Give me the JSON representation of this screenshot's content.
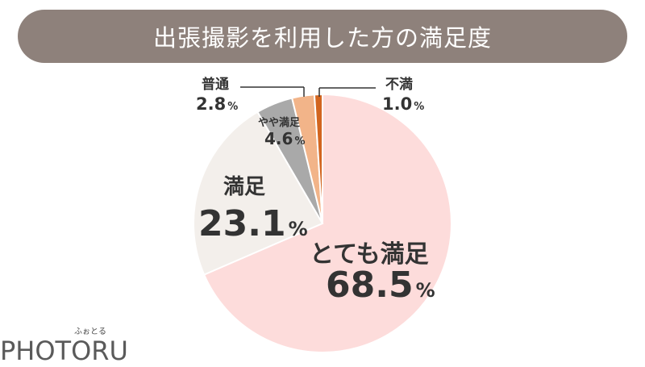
{
  "title": "出張撮影を利用した方の満足度",
  "chart_data": {
    "type": "pie",
    "title": "出張撮影を利用した方の満足度",
    "unit": "%",
    "start": "12 o'clock",
    "direction": "clockwise",
    "slices": [
      {
        "label": "とても満足",
        "value": 68.5,
        "color": "#fddcdb"
      },
      {
        "label": "満足",
        "value": 23.1,
        "color": "#f3efeb"
      },
      {
        "label": "やや満足",
        "value": 4.6,
        "color": "#a9a9a9"
      },
      {
        "label": "普通",
        "value": 2.8,
        "color": "#f2b489"
      },
      {
        "label": "不満",
        "value": 1.0,
        "color": "#d2651f"
      }
    ]
  },
  "labels": {
    "very_satisfied": {
      "name": "とても満足",
      "value": "68.5",
      "unit": "%"
    },
    "satisfied": {
      "name": "満足",
      "value": "23.1",
      "unit": "%"
    },
    "somewhat": {
      "name": "やや満足",
      "value": "4.6",
      "unit": "%"
    },
    "neutral": {
      "name": "普通",
      "value": "2.8",
      "unit": "%"
    },
    "dissatisfied": {
      "name": "不満",
      "value": "1.0",
      "unit": "%"
    }
  },
  "logo": {
    "kana": "ふぉとる",
    "word": "PHOTORU"
  },
  "colors": {
    "title_bg": "#8e817b",
    "text": "#333333"
  }
}
